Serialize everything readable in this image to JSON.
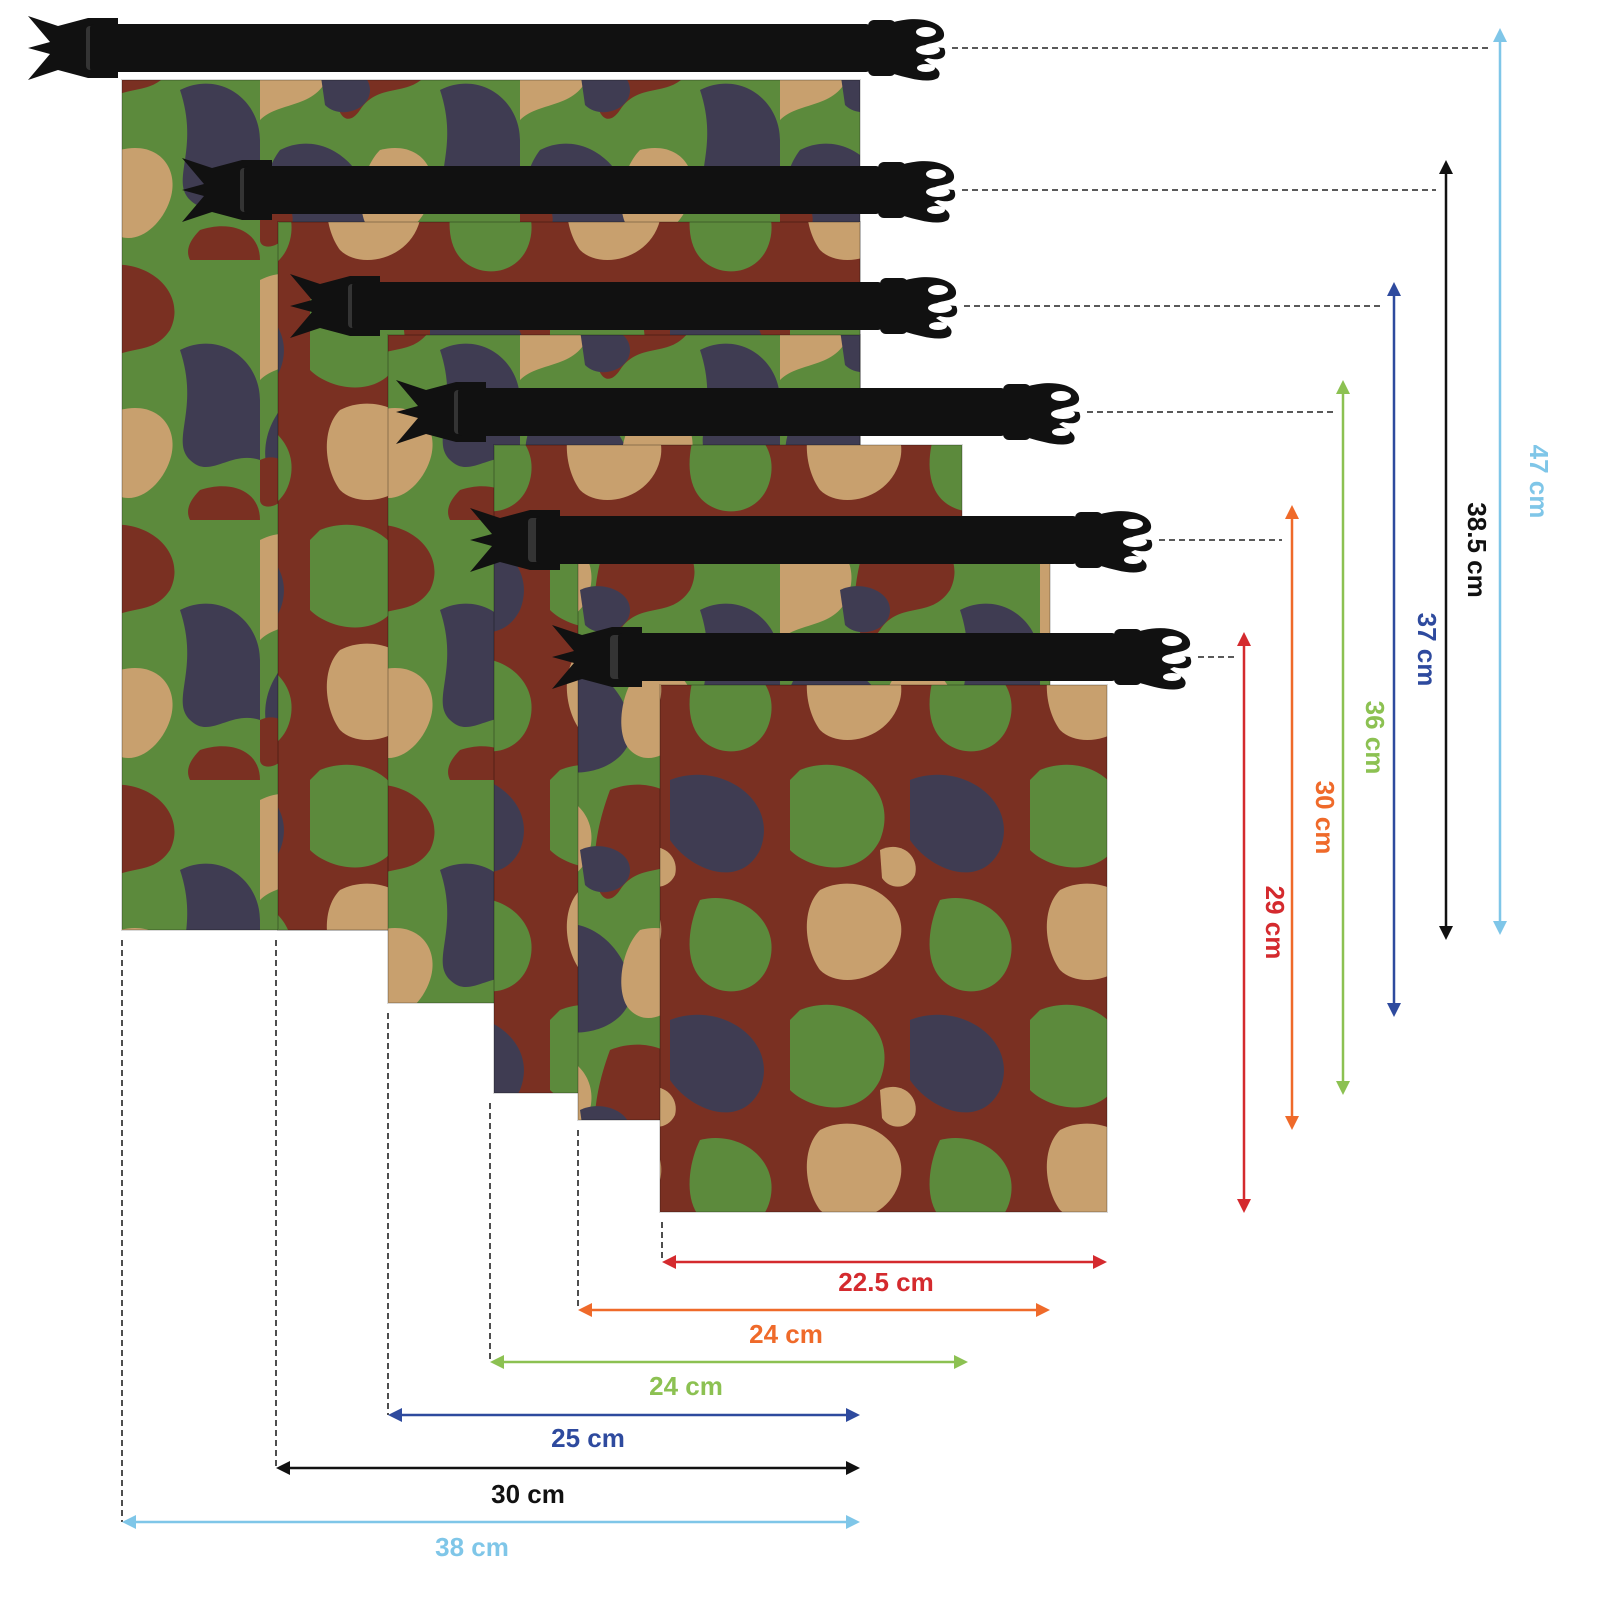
{
  "colors": {
    "camo_green": "#5c8a3c",
    "camo_tan": "#c8a06e",
    "camo_brown": "#7a3022",
    "camo_navy": "#3f3c52",
    "strap": "#111111",
    "guide_line": "#222222"
  },
  "bags": [
    {
      "name": "bag-1",
      "width_label": "38 cm",
      "height_label": "47 cm",
      "color": "#7fc6e8"
    },
    {
      "name": "bag-2",
      "width_label": "30 cm",
      "height_label": "38.5 cm",
      "color": "#111111"
    },
    {
      "name": "bag-3",
      "width_label": "25 cm",
      "height_label": "37 cm",
      "color": "#2e4a9e"
    },
    {
      "name": "bag-4",
      "width_label": "24 cm",
      "height_label": "36 cm",
      "color": "#8cc152"
    },
    {
      "name": "bag-5",
      "width_label": "24 cm",
      "height_label": "30 cm",
      "color": "#ef6a2a"
    },
    {
      "name": "bag-6",
      "width_label": "22.5 cm",
      "height_label": "29 cm",
      "color": "#d42a2e"
    }
  ],
  "icons": {
    "buckle": "side-release-buckle-icon"
  }
}
